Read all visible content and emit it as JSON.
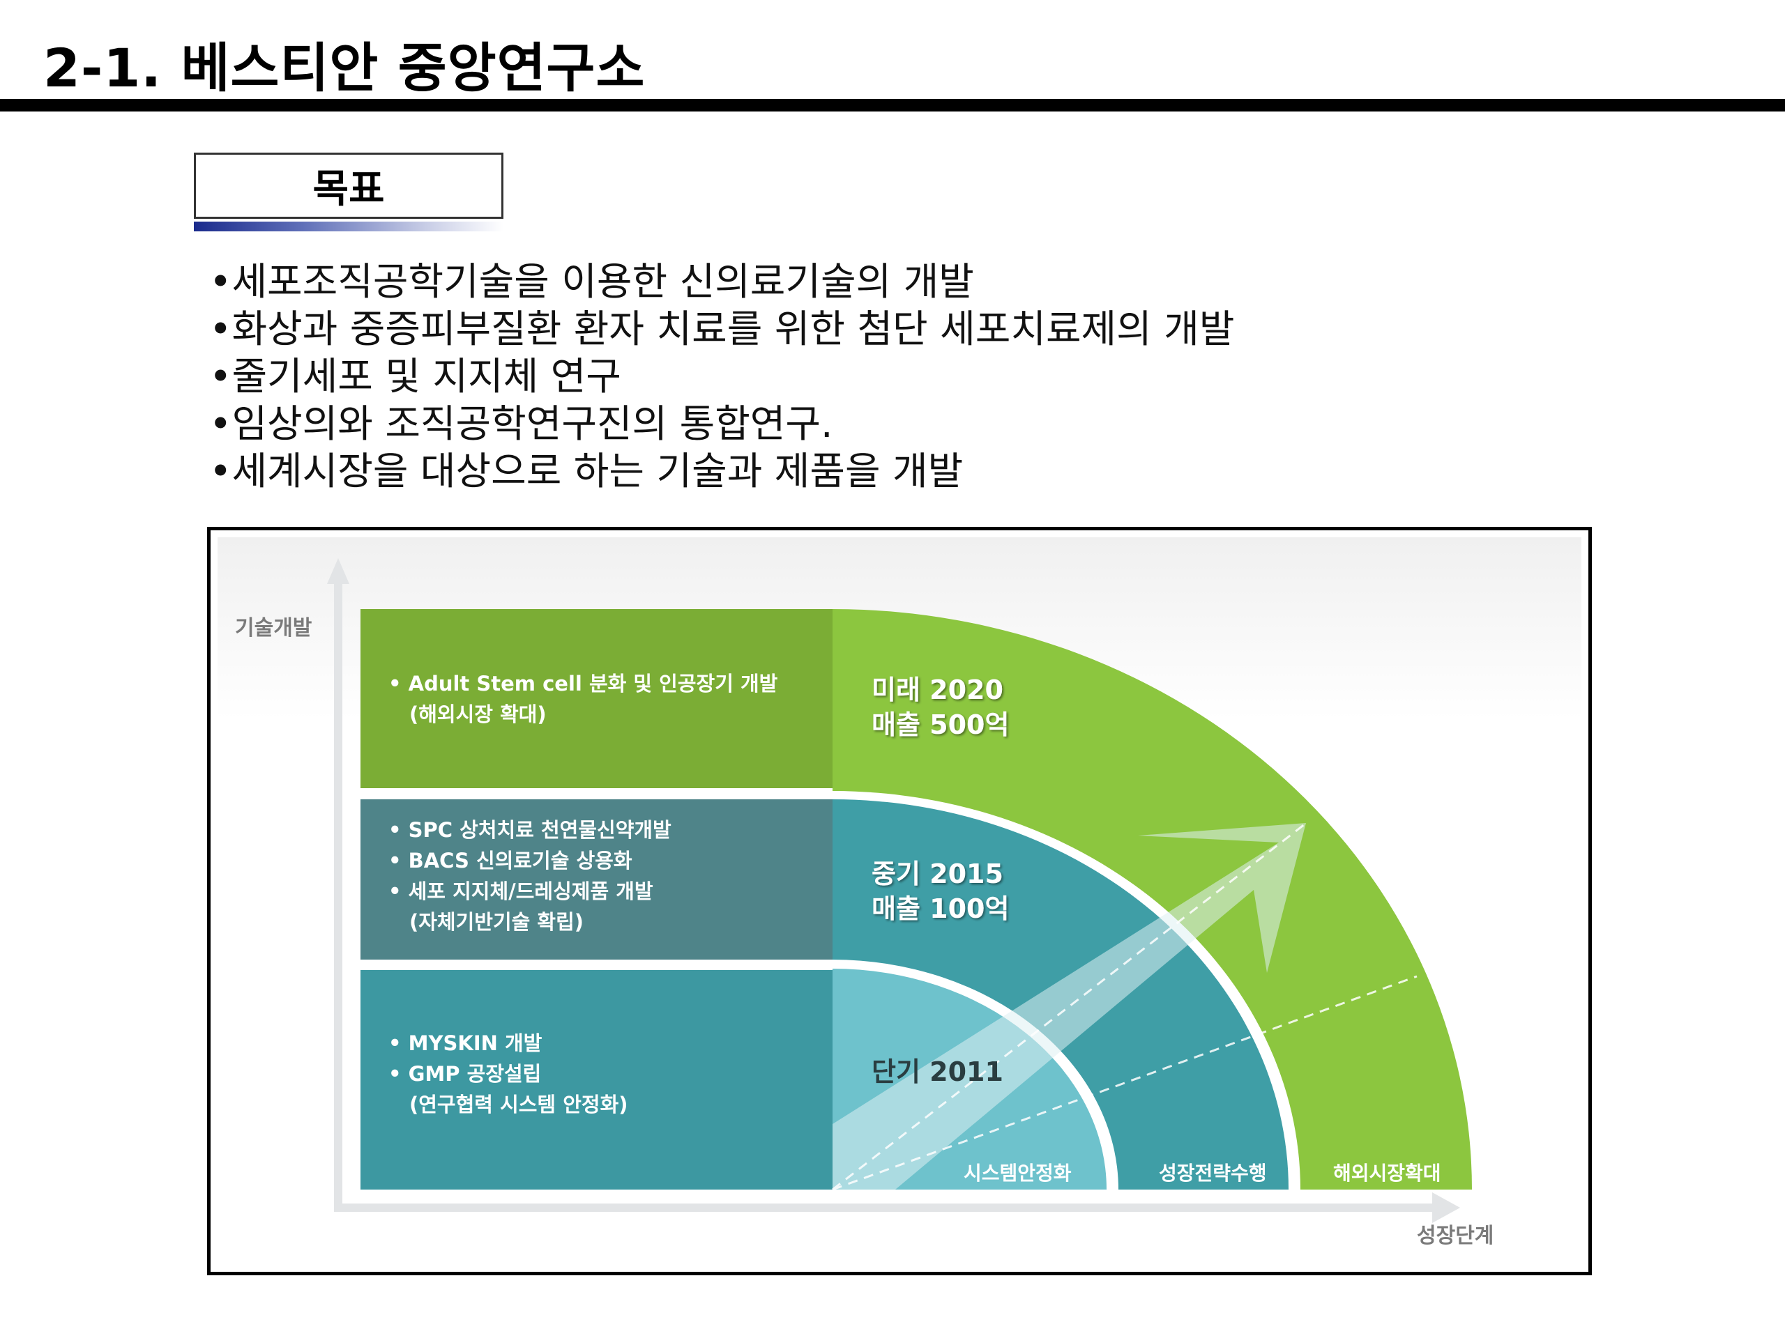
{
  "page": {
    "title": "2-1. 베스티안 중앙연구소"
  },
  "goal": {
    "label": "목표",
    "items": [
      "•세포조직공학기술을 이용한 신의료기술의 개발",
      "•화상과 중증피부질환 환자 치료를 위한 첨단 세포치료제의 개발",
      "•줄기세포 및 지지체 연구",
      "•임상의와 조직공학연구진의 통합연구.",
      "•세계시장을 대상으로 하는 기술과 제품을 개발"
    ]
  },
  "diagram": {
    "y_axis_label": "기술개발",
    "x_axis_label": "성장단계",
    "tiers": [
      {
        "bullets": [
          "• Adult Stem cell 분화 및 인공장기 개발",
          "(해외시장 확대)"
        ],
        "phase_line1": "미래 2020",
        "phase_line2": "매출 500억",
        "stage_label": "해외시장확대"
      },
      {
        "bullets": [
          "• SPC 상처치료 천연물신약개발",
          "• BACS 신의료기술 상용화",
          "• 세포 지지체/드레싱제품 개발",
          "(자체기반기술 확립)"
        ],
        "phase_line1": "중기 2015",
        "phase_line2": "매출 100억",
        "stage_label": "성장전략수행"
      },
      {
        "bullets": [
          "• MYSKIN 개발",
          "• GMP 공장설립",
          "(연구협력 시스템 안정화)"
        ],
        "phase_line1": "단기 2011",
        "phase_line2": "",
        "stage_label": "시스템안정화"
      }
    ],
    "colors": {
      "green_dark": "#7bad35",
      "green_bright": "#8cc63f",
      "teal_mid": "#4f8489",
      "teal_mid_arc": "#3f9ea6",
      "teal_low": "#3d98a1",
      "teal_light": "#6ec2cc"
    }
  }
}
